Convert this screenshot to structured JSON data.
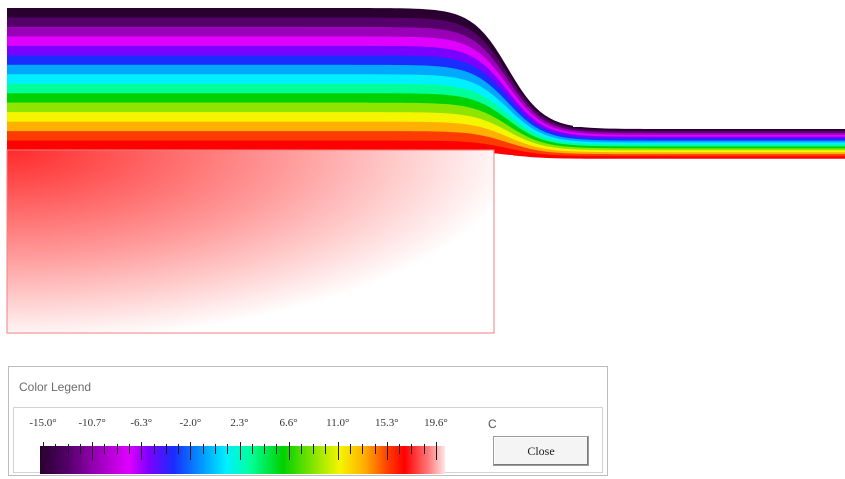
{
  "plot": {
    "colors": {
      "band_colors": [
        "#2a0030",
        "#55006a",
        "#9a00b8",
        "#e000ff",
        "#7a00ff",
        "#1a2cff",
        "#00a8ff",
        "#00f0ff",
        "#00ff9a",
        "#00d200",
        "#8ee600",
        "#f5f500",
        "#ffb000",
        "#ff3c00",
        "#ff0000"
      ],
      "warm_region_start": "#ff2a2a",
      "warm_region_end": "#ffffff",
      "outline": "#f08080"
    }
  },
  "legend": {
    "title": "Color Legend",
    "tick_labels": [
      "-15.0°",
      "-10.7°",
      "-6.3°",
      "-2.0°",
      "2.3°",
      "6.6°",
      "11.0°",
      "15.3°",
      "19.6°"
    ],
    "range_min": -15.0,
    "range_max": 19.6,
    "unit": "C",
    "close_label": "Close"
  }
}
